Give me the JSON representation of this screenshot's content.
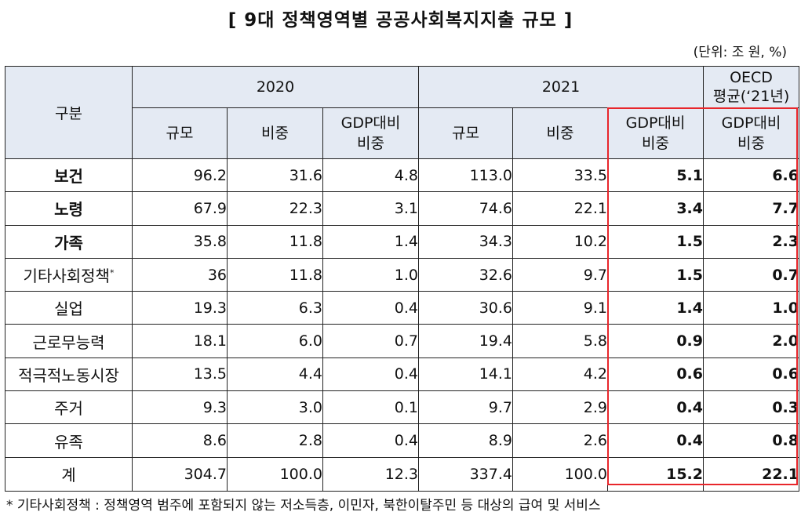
{
  "title": "[ 9대 정책영역별 공공사회복지지출 규모 ]",
  "unit_note": "(단위: 조 원, %)",
  "header": {
    "category": "구분",
    "year_2020": "2020",
    "year_2021": "2021",
    "oecd_line1": "OECD",
    "oecd_line2": "평균(‘21년)",
    "col_scale": "규모",
    "col_share": "비중",
    "col_gdp_line1": "GDP대비",
    "col_gdp_line2": "비중"
  },
  "rows": [
    {
      "category": "보건",
      "v2020_scale": "96.2",
      "v2020_share": "31.6",
      "v2020_gdp": "4.8",
      "v2021_scale": "113.0",
      "v2021_share": "33.5",
      "v2021_gdp": "5.1",
      "oecd_gdp": "6.6"
    },
    {
      "category": "노령",
      "v2020_scale": "67.9",
      "v2020_share": "22.3",
      "v2020_gdp": "3.1",
      "v2021_scale": "74.6",
      "v2021_share": "22.1",
      "v2021_gdp": "3.4",
      "oecd_gdp": "7.7"
    },
    {
      "category": "가족",
      "v2020_scale": "35.8",
      "v2020_share": "11.8",
      "v2020_gdp": "1.4",
      "v2021_scale": "34.3",
      "v2021_share": "10.2",
      "v2021_gdp": "1.5",
      "oecd_gdp": "2.3"
    },
    {
      "category": "기타사회정책",
      "footnote_mark": "*",
      "v2020_scale": "36",
      "v2020_share": "11.8",
      "v2020_gdp": "1.0",
      "v2021_scale": "32.6",
      "v2021_share": "9.7",
      "v2021_gdp": "1.5",
      "oecd_gdp": "0.7"
    },
    {
      "category": "실업",
      "v2020_scale": "19.3",
      "v2020_share": "6.3",
      "v2020_gdp": "0.4",
      "v2021_scale": "30.6",
      "v2021_share": "9.1",
      "v2021_gdp": "1.4",
      "oecd_gdp": "1.0"
    },
    {
      "category": "근로무능력",
      "v2020_scale": "18.1",
      "v2020_share": "6.0",
      "v2020_gdp": "0.7",
      "v2021_scale": "19.4",
      "v2021_share": "5.8",
      "v2021_gdp": "0.9",
      "oecd_gdp": "2.0"
    },
    {
      "category": "적극적노동시장",
      "v2020_scale": "13.5",
      "v2020_share": "4.4",
      "v2020_gdp": "0.4",
      "v2021_scale": "14.1",
      "v2021_share": "4.2",
      "v2021_gdp": "0.6",
      "oecd_gdp": "0.6"
    },
    {
      "category": "주거",
      "v2020_scale": "9.3",
      "v2020_share": "3.0",
      "v2020_gdp": "0.1",
      "v2021_scale": "9.7",
      "v2021_share": "2.9",
      "v2021_gdp": "0.4",
      "oecd_gdp": "0.3"
    },
    {
      "category": "유족",
      "v2020_scale": "8.6",
      "v2020_share": "2.8",
      "v2020_gdp": "0.4",
      "v2021_scale": "8.9",
      "v2021_share": "2.6",
      "v2021_gdp": "0.4",
      "oecd_gdp": "0.8"
    },
    {
      "category": "계",
      "v2020_scale": "304.7",
      "v2020_share": "100.0",
      "v2020_gdp": "12.3",
      "v2021_scale": "337.4",
      "v2021_share": "100.0",
      "v2021_gdp": "15.2",
      "oecd_gdp": "22.1"
    }
  ],
  "footnote": "* 기타사회정책 : 정책영역 범주에 포함되지 않는 저소득층, 이민자, 북한이탈주민 등 대상의 급여 및 서비스",
  "colors": {
    "header_bg": "#e4eaf3",
    "highlight_border": "#e8262b"
  }
}
